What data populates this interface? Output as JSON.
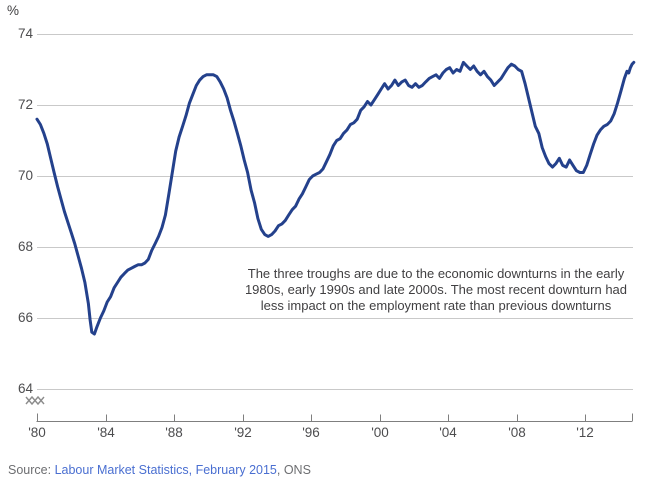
{
  "chart": {
    "unit_label": "%",
    "annotation": {
      "line1": "The three troughs are due to the economic downturns in the early",
      "line2": "1980s, early 1990s and late 2000s. The most recent downturn had",
      "line3": "less impact on the employment rate than previous downturns"
    },
    "source": {
      "prefix": "Source: ",
      "link": "Labour Market Statistics, February 2015",
      "suffix": ", ONS"
    }
  },
  "chart_data": {
    "type": "line",
    "title": "",
    "ylabel": "%",
    "xlabel": "",
    "grid": "horizontal",
    "legend": "none",
    "axis_break_below_y": 64,
    "ylim": [
      64,
      74
    ],
    "xlim": [
      1980,
      2014.85
    ],
    "colors": {
      "line": "#24418c",
      "gridline": "#c9c9c9",
      "axis": "#7f7f7f",
      "tick_label": "#4d4d4f",
      "break_glyph": "#8c8c8c"
    },
    "y_axis": {
      "ticks": [
        64,
        66,
        68,
        70,
        72,
        74
      ]
    },
    "x_axis": {
      "ticks": [
        {
          "label": "'80",
          "year": 1980
        },
        {
          "label": "'84",
          "year": 1984
        },
        {
          "label": "'88",
          "year": 1988
        },
        {
          "label": "'92",
          "year": 1992
        },
        {
          "label": "'96",
          "year": 1996
        },
        {
          "label": "'00",
          "year": 2000
        },
        {
          "label": "'04",
          "year": 2004
        },
        {
          "label": "'08",
          "year": 2008
        },
        {
          "label": "'12",
          "year": 2012
        }
      ],
      "end_year": 2014.75
    },
    "series": [
      {
        "color": "#24418c",
        "points": [
          [
            1980.0,
            71.6
          ],
          [
            1980.2,
            71.45
          ],
          [
            1980.4,
            71.2
          ],
          [
            1980.6,
            70.9
          ],
          [
            1980.8,
            70.5
          ],
          [
            1981.0,
            70.1
          ],
          [
            1981.2,
            69.7
          ],
          [
            1981.4,
            69.35
          ],
          [
            1981.6,
            69.0
          ],
          [
            1981.8,
            68.7
          ],
          [
            1982.0,
            68.4
          ],
          [
            1982.2,
            68.1
          ],
          [
            1982.4,
            67.75
          ],
          [
            1982.6,
            67.4
          ],
          [
            1982.8,
            67.0
          ],
          [
            1983.0,
            66.4
          ],
          [
            1983.1,
            65.95
          ],
          [
            1983.2,
            65.6
          ],
          [
            1983.35,
            65.55
          ],
          [
            1983.5,
            65.75
          ],
          [
            1983.7,
            66.0
          ],
          [
            1983.9,
            66.2
          ],
          [
            1984.1,
            66.45
          ],
          [
            1984.3,
            66.6
          ],
          [
            1984.5,
            66.85
          ],
          [
            1984.7,
            67.0
          ],
          [
            1984.9,
            67.15
          ],
          [
            1985.1,
            67.25
          ],
          [
            1985.3,
            67.35
          ],
          [
            1985.5,
            67.4
          ],
          [
            1985.7,
            67.45
          ],
          [
            1985.9,
            67.5
          ],
          [
            1986.1,
            67.5
          ],
          [
            1986.3,
            67.55
          ],
          [
            1986.5,
            67.65
          ],
          [
            1986.7,
            67.9
          ],
          [
            1986.9,
            68.1
          ],
          [
            1987.1,
            68.3
          ],
          [
            1987.3,
            68.55
          ],
          [
            1987.5,
            68.9
          ],
          [
            1987.7,
            69.5
          ],
          [
            1987.9,
            70.1
          ],
          [
            1988.1,
            70.7
          ],
          [
            1988.3,
            71.1
          ],
          [
            1988.5,
            71.4
          ],
          [
            1988.7,
            71.7
          ],
          [
            1988.9,
            72.05
          ],
          [
            1989.1,
            72.3
          ],
          [
            1989.3,
            72.55
          ],
          [
            1989.5,
            72.7
          ],
          [
            1989.7,
            72.8
          ],
          [
            1989.9,
            72.85
          ],
          [
            1990.1,
            72.85
          ],
          [
            1990.3,
            72.85
          ],
          [
            1990.5,
            72.8
          ],
          [
            1990.7,
            72.65
          ],
          [
            1990.9,
            72.45
          ],
          [
            1991.1,
            72.2
          ],
          [
            1991.3,
            71.85
          ],
          [
            1991.5,
            71.55
          ],
          [
            1991.7,
            71.2
          ],
          [
            1991.9,
            70.85
          ],
          [
            1992.1,
            70.45
          ],
          [
            1992.3,
            70.1
          ],
          [
            1992.5,
            69.6
          ],
          [
            1992.7,
            69.25
          ],
          [
            1992.9,
            68.8
          ],
          [
            1993.1,
            68.5
          ],
          [
            1993.3,
            68.35
          ],
          [
            1993.5,
            68.3
          ],
          [
            1993.7,
            68.35
          ],
          [
            1993.9,
            68.45
          ],
          [
            1994.1,
            68.6
          ],
          [
            1994.3,
            68.65
          ],
          [
            1994.5,
            68.75
          ],
          [
            1994.7,
            68.9
          ],
          [
            1994.9,
            69.05
          ],
          [
            1995.1,
            69.15
          ],
          [
            1995.3,
            69.35
          ],
          [
            1995.5,
            69.5
          ],
          [
            1995.7,
            69.7
          ],
          [
            1995.9,
            69.9
          ],
          [
            1996.1,
            70.0
          ],
          [
            1996.3,
            70.05
          ],
          [
            1996.5,
            70.1
          ],
          [
            1996.7,
            70.2
          ],
          [
            1996.9,
            70.4
          ],
          [
            1997.1,
            70.6
          ],
          [
            1997.3,
            70.85
          ],
          [
            1997.5,
            71.0
          ],
          [
            1997.7,
            71.05
          ],
          [
            1997.9,
            71.2
          ],
          [
            1998.1,
            71.3
          ],
          [
            1998.3,
            71.45
          ],
          [
            1998.5,
            71.5
          ],
          [
            1998.7,
            71.6
          ],
          [
            1998.9,
            71.85
          ],
          [
            1999.1,
            71.95
          ],
          [
            1999.3,
            72.1
          ],
          [
            1999.5,
            72.0
          ],
          [
            1999.7,
            72.15
          ],
          [
            1999.9,
            72.3
          ],
          [
            2000.1,
            72.45
          ],
          [
            2000.3,
            72.6
          ],
          [
            2000.5,
            72.45
          ],
          [
            2000.7,
            72.55
          ],
          [
            2000.9,
            72.7
          ],
          [
            2001.1,
            72.55
          ],
          [
            2001.3,
            72.65
          ],
          [
            2001.5,
            72.7
          ],
          [
            2001.7,
            72.55
          ],
          [
            2001.9,
            72.5
          ],
          [
            2002.1,
            72.6
          ],
          [
            2002.3,
            72.5
          ],
          [
            2002.5,
            72.55
          ],
          [
            2002.7,
            72.65
          ],
          [
            2002.9,
            72.75
          ],
          [
            2003.1,
            72.8
          ],
          [
            2003.3,
            72.85
          ],
          [
            2003.5,
            72.75
          ],
          [
            2003.7,
            72.9
          ],
          [
            2003.9,
            73.0
          ],
          [
            2004.1,
            73.05
          ],
          [
            2004.3,
            72.9
          ],
          [
            2004.5,
            73.0
          ],
          [
            2004.7,
            72.95
          ],
          [
            2004.9,
            73.2
          ],
          [
            2005.1,
            73.1
          ],
          [
            2005.3,
            73.0
          ],
          [
            2005.5,
            73.1
          ],
          [
            2005.7,
            72.95
          ],
          [
            2005.9,
            72.85
          ],
          [
            2006.1,
            72.95
          ],
          [
            2006.3,
            72.8
          ],
          [
            2006.5,
            72.7
          ],
          [
            2006.7,
            72.55
          ],
          [
            2006.9,
            72.65
          ],
          [
            2007.1,
            72.75
          ],
          [
            2007.3,
            72.9
          ],
          [
            2007.5,
            73.05
          ],
          [
            2007.7,
            73.15
          ],
          [
            2007.9,
            73.1
          ],
          [
            2008.1,
            73.0
          ],
          [
            2008.3,
            72.95
          ],
          [
            2008.5,
            72.6
          ],
          [
            2008.7,
            72.2
          ],
          [
            2008.9,
            71.8
          ],
          [
            2009.1,
            71.4
          ],
          [
            2009.3,
            71.2
          ],
          [
            2009.5,
            70.8
          ],
          [
            2009.7,
            70.55
          ],
          [
            2009.9,
            70.35
          ],
          [
            2010.1,
            70.25
          ],
          [
            2010.3,
            70.35
          ],
          [
            2010.5,
            70.5
          ],
          [
            2010.7,
            70.3
          ],
          [
            2010.9,
            70.25
          ],
          [
            2011.1,
            70.45
          ],
          [
            2011.3,
            70.3
          ],
          [
            2011.5,
            70.15
          ],
          [
            2011.7,
            70.1
          ],
          [
            2011.9,
            70.1
          ],
          [
            2012.1,
            70.3
          ],
          [
            2012.3,
            70.6
          ],
          [
            2012.5,
            70.9
          ],
          [
            2012.7,
            71.15
          ],
          [
            2012.9,
            71.3
          ],
          [
            2013.1,
            71.4
          ],
          [
            2013.3,
            71.45
          ],
          [
            2013.5,
            71.55
          ],
          [
            2013.7,
            71.75
          ],
          [
            2013.9,
            72.05
          ],
          [
            2014.1,
            72.4
          ],
          [
            2014.3,
            72.75
          ],
          [
            2014.45,
            72.95
          ],
          [
            2014.55,
            72.9
          ],
          [
            2014.65,
            73.05
          ],
          [
            2014.75,
            73.15
          ],
          [
            2014.85,
            73.2
          ]
        ]
      }
    ]
  }
}
